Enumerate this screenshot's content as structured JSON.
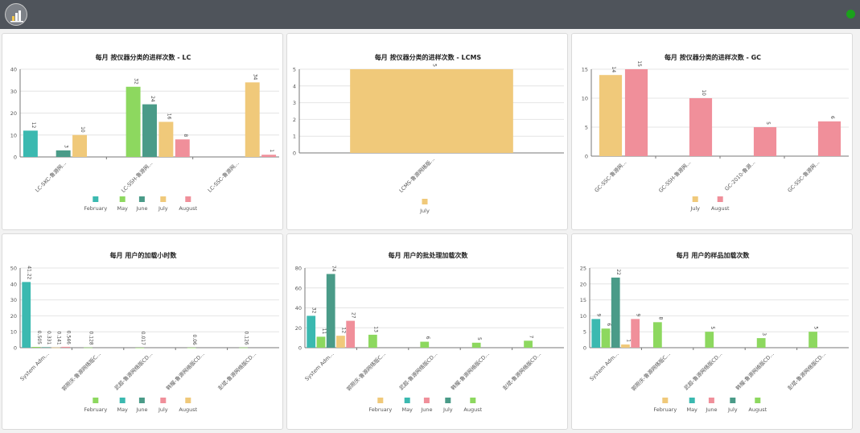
{
  "app": {
    "logo_icon": "bar-chart-logo-icon",
    "status_icon": "online-status-dot-icon",
    "status_color": "#1ba11b"
  },
  "colors": {
    "February": "#3bb9b0",
    "May": "#8dd85f",
    "June": "#4a9b88",
    "July": "#f0c97a",
    "August": "#f08f9a"
  },
  "chart_data": [
    {
      "type": "bar",
      "title": "每月 按仪器分类的进样次数 - LC",
      "categories": [
        "LC-SKC-鲁源网...",
        "LC-SSH-鲁源网...",
        "LC-SSC-鲁源网..."
      ],
      "ylim": [
        0,
        40
      ],
      "yticks": [
        0,
        10,
        20,
        30,
        40
      ],
      "series": [
        {
          "name": "February",
          "values": [
            12,
            null,
            null
          ],
          "labels": [
            "12",
            "",
            ""
          ]
        },
        {
          "name": "May",
          "values": [
            null,
            32,
            null
          ],
          "labels": [
            "",
            "32",
            ""
          ]
        },
        {
          "name": "June",
          "values": [
            3,
            24,
            null
          ],
          "labels": [
            "3",
            "24",
            ""
          ]
        },
        {
          "name": "July",
          "values": [
            10,
            16,
            34
          ],
          "labels": [
            "10",
            "16",
            "34"
          ]
        },
        {
          "name": "August",
          "values": [
            null,
            8,
            1
          ],
          "labels": [
            "",
            "8",
            "1"
          ]
        }
      ],
      "legend": [
        "February",
        "May",
        "June",
        "July",
        "August"
      ],
      "grid": true,
      "legend_position": "bottom"
    },
    {
      "type": "bar",
      "title": "每月 按仪器分类的进样次数 - LCMS",
      "categories": [
        "LCMS-鲁源网络版..."
      ],
      "ylim": [
        0,
        5
      ],
      "yticks": [
        0,
        1,
        2,
        3,
        4,
        5
      ],
      "series": [
        {
          "name": "July",
          "values": [
            5
          ],
          "labels": [
            "5"
          ]
        }
      ],
      "legend": [
        "July"
      ],
      "grid": true,
      "legend_position": "bottom"
    },
    {
      "type": "bar",
      "title": "每月 按仪器分类的进样次数 - GC",
      "categories": [
        "GC-SSC-鲁源网...",
        "GC-SSH-鲁源网...",
        "GC-2010-鲁源...",
        "GC-SSC-鲁源网..."
      ],
      "ylim": [
        0,
        15
      ],
      "yticks": [
        0,
        5,
        10,
        15
      ],
      "series": [
        {
          "name": "July",
          "values": [
            14,
            null,
            null,
            null
          ],
          "labels": [
            "14",
            "",
            "",
            ""
          ]
        },
        {
          "name": "August",
          "values": [
            15,
            10,
            5,
            6
          ],
          "labels": [
            "15",
            "10",
            "5",
            "6"
          ]
        }
      ],
      "legend": [
        "July",
        "August"
      ],
      "grid": true,
      "legend_position": "bottom"
    },
    {
      "type": "bar",
      "title": "每月 用户的加载小时数",
      "categories": [
        "System Adm...",
        "郭照庆-鲁源网络版C...",
        "武超-鲁源网络版CD...",
        "韩耀-鲁源网络版CD...",
        "彭斌-鲁源网络版CD..."
      ],
      "ylim": [
        0,
        50
      ],
      "yticks": [
        0,
        10,
        20,
        30,
        40,
        50
      ],
      "series": [
        {
          "name": "February",
          "values": [
            41.22,
            null,
            null,
            null,
            null
          ],
          "labels": [
            "41.22",
            "",
            "",
            "",
            ""
          ]
        },
        {
          "name": "May",
          "values": [
            0.505,
            0.128,
            0.017,
            0.06,
            0.126
          ],
          "labels": [
            "0.505",
            "0.128",
            "0.017",
            "0.06",
            "0.126"
          ]
        },
        {
          "name": "June",
          "values": [
            0.331,
            null,
            null,
            null,
            null
          ],
          "labels": [
            "0.331",
            "",
            "",
            "",
            ""
          ]
        },
        {
          "name": "July",
          "values": [
            0.141,
            null,
            null,
            null,
            null
          ],
          "labels": [
            "0.141",
            "",
            "",
            "",
            ""
          ]
        },
        {
          "name": "August",
          "values": [
            0.546,
            null,
            null,
            null,
            null
          ],
          "labels": [
            "0.546",
            "",
            "",
            "",
            ""
          ]
        }
      ],
      "legend": [
        "February",
        "May",
        "June",
        "July",
        "August"
      ],
      "legend_colors": [
        "#8dd85f",
        "#3bb9b0",
        "#4a9b88",
        "#f08f9a",
        "#f0c97a"
      ],
      "grid": true,
      "legend_position": "bottom"
    },
    {
      "type": "bar",
      "title": "每月 用户的批处理加载次数",
      "categories": [
        "System Adm...",
        "郭照庆-鲁源网络版C...",
        "武超-鲁源网络版CD...",
        "韩耀-鲁源网络版CD...",
        "彭斌-鲁源网络版CD..."
      ],
      "ylim": [
        0,
        80
      ],
      "yticks": [
        0,
        20,
        40,
        60,
        80
      ],
      "series": [
        {
          "name": "February",
          "values": [
            32,
            null,
            null,
            null,
            null
          ],
          "labels": [
            "32",
            "",
            "",
            "",
            ""
          ]
        },
        {
          "name": "May",
          "values": [
            11,
            13,
            6,
            5,
            7
          ],
          "labels": [
            "11",
            "13",
            "6",
            "5",
            "7"
          ]
        },
        {
          "name": "June",
          "values": [
            74,
            null,
            null,
            null,
            null
          ],
          "labels": [
            "74",
            "",
            "",
            "",
            ""
          ]
        },
        {
          "name": "July",
          "values": [
            12,
            null,
            null,
            null,
            null
          ],
          "labels": [
            "12",
            "",
            "",
            "",
            ""
          ]
        },
        {
          "name": "August",
          "values": [
            27,
            null,
            null,
            null,
            null
          ],
          "labels": [
            "27",
            "",
            "",
            "",
            ""
          ]
        }
      ],
      "legend": [
        "February",
        "May",
        "June",
        "July",
        "August"
      ],
      "legend_colors": [
        "#f0c97a",
        "#3bb9b0",
        "#f08f9a",
        "#4a9b88",
        "#8dd85f"
      ],
      "grid": true,
      "legend_position": "bottom"
    },
    {
      "type": "bar",
      "title": "每月 用户的样品加载次数",
      "categories": [
        "System Adm...",
        "郭照庆-鲁源网络版C...",
        "武超-鲁源网络版CD...",
        "韩耀-鲁源网络版CD...",
        "彭斌-鲁源网络版CD..."
      ],
      "ylim": [
        0,
        25
      ],
      "yticks": [
        0,
        5,
        10,
        15,
        20,
        25
      ],
      "series": [
        {
          "name": "February",
          "values": [
            9,
            null,
            null,
            null,
            null
          ],
          "labels": [
            "9",
            "",
            "",
            "",
            ""
          ]
        },
        {
          "name": "May",
          "values": [
            6,
            8,
            5,
            3,
            5
          ],
          "labels": [
            "6",
            "8",
            "5",
            "3",
            "5"
          ]
        },
        {
          "name": "June",
          "values": [
            22,
            null,
            null,
            null,
            null
          ],
          "labels": [
            "22",
            "",
            "",
            "",
            ""
          ]
        },
        {
          "name": "July",
          "values": [
            1,
            null,
            null,
            null,
            null
          ],
          "labels": [
            "1",
            "",
            "",
            "",
            ""
          ]
        },
        {
          "name": "August",
          "values": [
            9,
            null,
            null,
            null,
            null
          ],
          "labels": [
            "9",
            "",
            "",
            "",
            ""
          ]
        }
      ],
      "legend": [
        "February",
        "May",
        "June",
        "July",
        "August"
      ],
      "legend_colors": [
        "#f0c97a",
        "#3bb9b0",
        "#f08f9a",
        "#4a9b88",
        "#8dd85f"
      ],
      "grid": true,
      "legend_position": "bottom"
    }
  ]
}
